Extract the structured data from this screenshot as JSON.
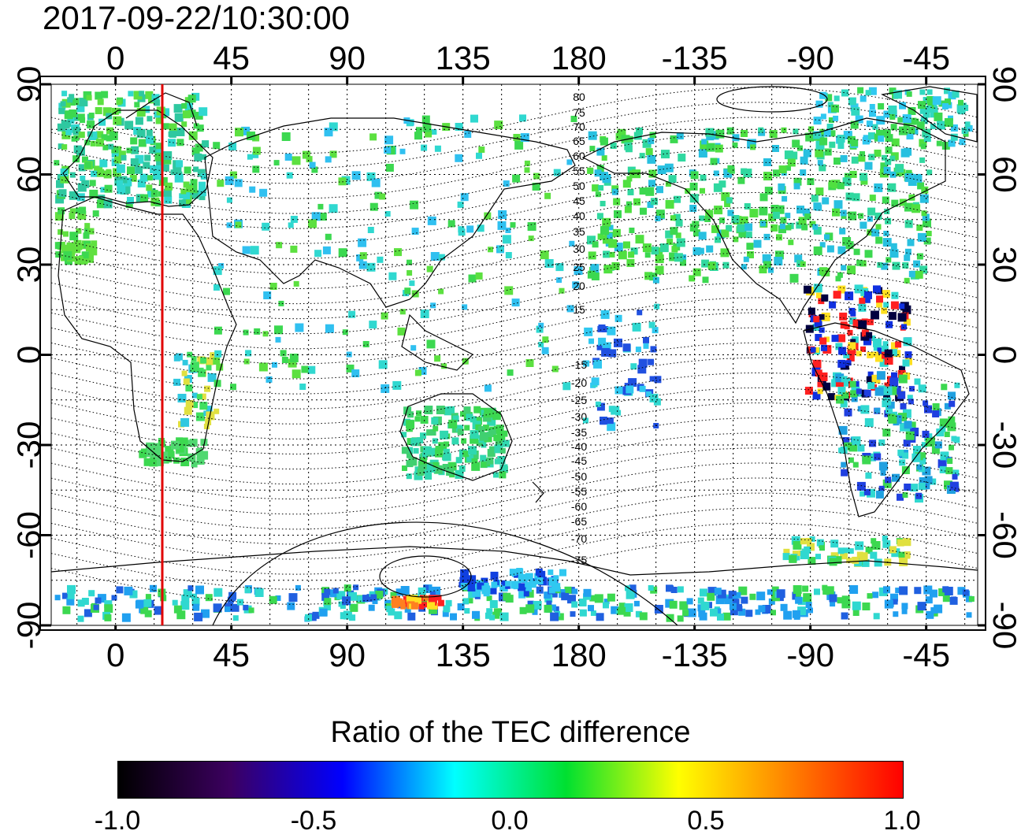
{
  "header": {
    "timestamp": "2017-09-22/10:30:00"
  },
  "map": {
    "x_ticks_top": [
      "0",
      "45",
      "90",
      "135",
      "180",
      "-135",
      "-90",
      "-45"
    ],
    "x_ticks_bottom": [
      "0",
      "45",
      "90",
      "135",
      "180",
      "-135",
      "-90",
      "-45"
    ],
    "y_ticks_left": [
      "90",
      "60",
      "30",
      "0",
      "-30",
      "-60",
      "-90"
    ],
    "y_ticks_right": [
      "90",
      "60",
      "30",
      "0",
      "-30",
      "-60",
      "-90"
    ],
    "magnetic_lat_labels_north": [
      "80",
      "75",
      "70",
      "65",
      "60",
      "55",
      "50",
      "45",
      "40",
      "35",
      "30",
      "25",
      "20",
      "15"
    ],
    "magnetic_lat_labels_south": [
      "-15",
      "-20",
      "-25",
      "-30",
      "-35",
      "-40",
      "-45",
      "-50",
      "-55",
      "-60",
      "-65",
      "-70",
      "-75"
    ],
    "marker_line_color": "#e00000"
  },
  "colorbar": {
    "title": "Ratio of the TEC difference",
    "ticks": [
      "-1.0",
      "-0.5",
      "0.0",
      "0.5",
      "1.0"
    ],
    "colors": [
      "#000000",
      "#3c0060",
      "#0000ff",
      "#00ffff",
      "#00e030",
      "#ffff00",
      "#ff8000",
      "#ff0000"
    ]
  }
}
